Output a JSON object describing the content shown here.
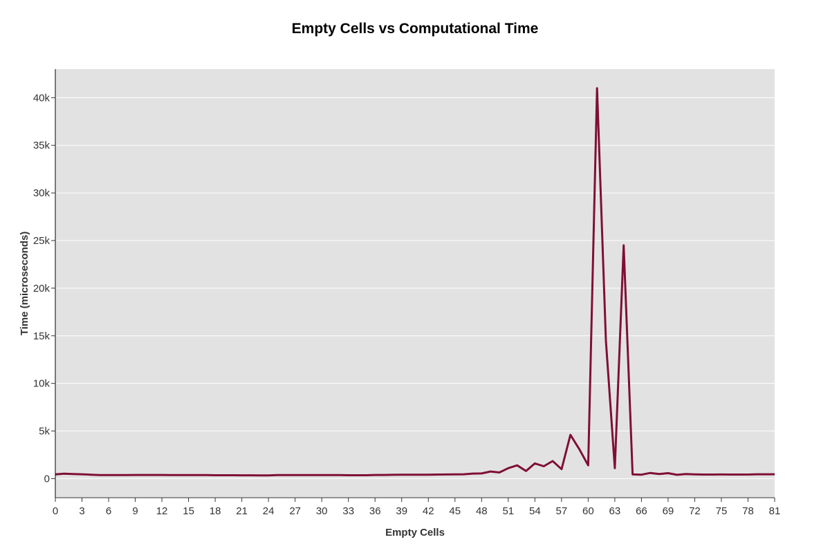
{
  "chart_data": {
    "type": "line",
    "title": "Empty Cells vs Computational Time",
    "xlabel": "Empty Cells",
    "ylabel": "Time (microseconds)",
    "xlim": [
      0,
      81
    ],
    "ylim": [
      -2000,
      43000
    ],
    "x_ticks": [
      0,
      3,
      6,
      9,
      12,
      15,
      18,
      21,
      24,
      27,
      30,
      33,
      36,
      39,
      42,
      45,
      48,
      51,
      54,
      57,
      60,
      63,
      66,
      69,
      72,
      75,
      78,
      81
    ],
    "y_ticks": [
      0,
      5000,
      10000,
      15000,
      20000,
      25000,
      30000,
      35000,
      40000
    ],
    "y_tick_labels": [
      "0",
      "5k",
      "10k",
      "15k",
      "20k",
      "25k",
      "30k",
      "35k",
      "40k"
    ],
    "grid": true,
    "line_color": "#7f0f35",
    "plot_bg": "#e2e2e2",
    "series": [
      {
        "x": [
          0,
          1,
          2,
          3,
          4,
          5,
          6,
          7,
          8,
          9,
          10,
          11,
          12,
          13,
          14,
          15,
          16,
          17,
          18,
          19,
          20,
          21,
          22,
          23,
          24,
          25,
          26,
          27,
          28,
          29,
          30,
          31,
          32,
          33,
          34,
          35,
          36,
          37,
          38,
          39,
          40,
          41,
          42,
          43,
          44,
          45,
          46,
          47,
          48,
          49,
          50,
          51,
          52,
          53,
          54,
          55,
          56,
          57,
          58,
          59,
          60,
          61,
          62,
          63,
          64,
          65,
          66,
          67,
          68,
          69,
          70,
          71,
          72,
          73,
          74,
          75,
          76,
          77,
          78,
          79,
          80,
          81
        ],
        "y": [
          450,
          520,
          480,
          460,
          420,
          380,
          370,
          380,
          380,
          390,
          390,
          390,
          390,
          380,
          380,
          370,
          370,
          370,
          360,
          360,
          360,
          350,
          350,
          340,
          340,
          380,
          380,
          380,
          380,
          380,
          370,
          370,
          370,
          360,
          360,
          360,
          390,
          390,
          400,
          410,
          410,
          410,
          420,
          430,
          440,
          450,
          460,
          530,
          550,
          750,
          650,
          1100,
          1400,
          800,
          1600,
          1300,
          1850,
          1000,
          4600,
          3100,
          1400,
          41000,
          14500,
          1100,
          24500,
          450,
          420,
          600,
          480,
          580,
          400,
          480,
          450,
          430,
          430,
          440,
          430,
          430,
          430,
          460,
          460,
          460
        ]
      }
    ]
  }
}
